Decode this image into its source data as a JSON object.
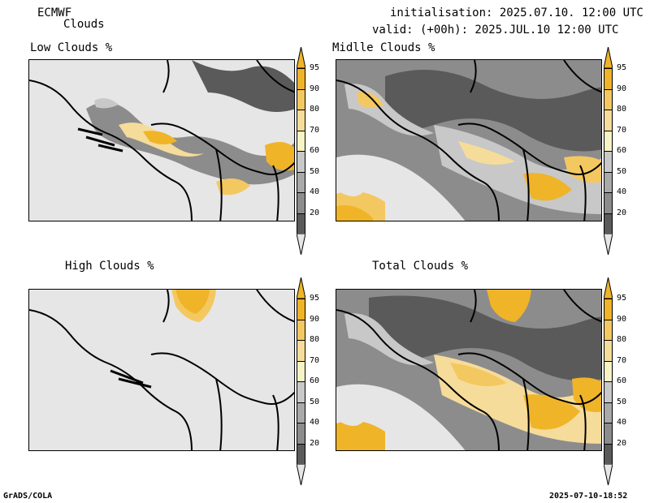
{
  "header": {
    "model": "ECMWF",
    "product": "Clouds",
    "initialisation": "initialisation: 2025.07.10. 12:00 UTC",
    "valid": "valid: (+00h): 2025.JUL.10 12:00 UTC"
  },
  "panels": [
    {
      "title": "Low Clouds %"
    },
    {
      "title": "Midlle Clouds %"
    },
    {
      "title": "High Clouds %"
    },
    {
      "title": "Total Clouds %"
    }
  ],
  "legend": {
    "levels": [
      "95",
      "90",
      "80",
      "70",
      "60",
      "50",
      "40",
      "20"
    ],
    "colors": {
      "c95": "#f0b429",
      "c90": "#f4c860",
      "c80": "#f6dc9a",
      "c70": "#f7f3c4",
      "c60": "#c8c8c8",
      "c50": "#a9a9a9",
      "c40": "#8c8c8c",
      "c20": "#5a5a5a",
      "background": "#e6e6e6"
    }
  },
  "footer": {
    "left": "GrADS/COLA",
    "right": "2025-07-10-18:52"
  }
}
